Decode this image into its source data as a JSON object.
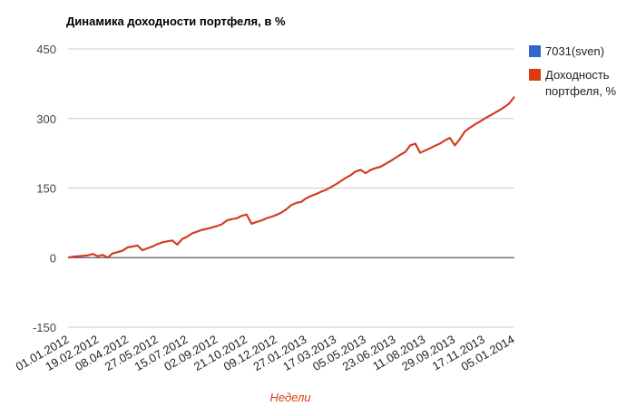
{
  "chart_data": {
    "type": "line",
    "title": "Динамика доходности портфеля, в %",
    "xlabel": "Недели",
    "ylabel": "",
    "ylim": [
      -150,
      450
    ],
    "yticks": [
      450,
      300,
      150,
      0,
      -150
    ],
    "grid": true,
    "legend_position": "right",
    "x_tick_labels": [
      "01.01.2012",
      "19.02.2012",
      "08.04.2012",
      "27.05.2012",
      "15.07.2012",
      "02.09.2012",
      "21.10.2012",
      "09.12.2012",
      "27.01.2013",
      "17.03.2013",
      "05.05.2013",
      "23.06.2013",
      "11.08.2013",
      "29.09.2013",
      "17.11.2013",
      "05.01.2014"
    ],
    "series": [
      {
        "name": "7031(sven)",
        "color": "#3366cc",
        "values": [
          0,
          2,
          3,
          4,
          5,
          8,
          3,
          6,
          0,
          9,
          12,
          15,
          22,
          24,
          26,
          16,
          20,
          24,
          29,
          33,
          35,
          37,
          28,
          40,
          45,
          52,
          56,
          60,
          62,
          65,
          68,
          72,
          80,
          83,
          85,
          90,
          93,
          73,
          77,
          80,
          85,
          88,
          92,
          97,
          104,
          113,
          118,
          120,
          128,
          133,
          137,
          142,
          146,
          152,
          158,
          165,
          172,
          178,
          186,
          189,
          182,
          189,
          193,
          196,
          202,
          208,
          215,
          222,
          228,
          242,
          246,
          226,
          231,
          236,
          241,
          246,
          253,
          258,
          242,
          256,
          272,
          280,
          287,
          293,
          300,
          306,
          312,
          318,
          325,
          333,
          347
        ]
      },
      {
        "name": "Доходность портфеля, %",
        "color": "#dc3912",
        "values": [
          0,
          2,
          3,
          4,
          5,
          8,
          3,
          6,
          0,
          9,
          12,
          15,
          22,
          24,
          26,
          16,
          20,
          24,
          29,
          33,
          35,
          37,
          28,
          40,
          45,
          52,
          56,
          60,
          62,
          65,
          68,
          72,
          80,
          83,
          85,
          90,
          93,
          73,
          77,
          80,
          85,
          88,
          92,
          97,
          104,
          113,
          118,
          120,
          128,
          133,
          137,
          142,
          146,
          152,
          158,
          165,
          172,
          178,
          186,
          189,
          182,
          189,
          193,
          196,
          202,
          208,
          215,
          222,
          228,
          242,
          246,
          226,
          231,
          236,
          241,
          246,
          253,
          258,
          242,
          256,
          272,
          280,
          287,
          293,
          300,
          306,
          312,
          318,
          325,
          333,
          347
        ]
      }
    ]
  }
}
